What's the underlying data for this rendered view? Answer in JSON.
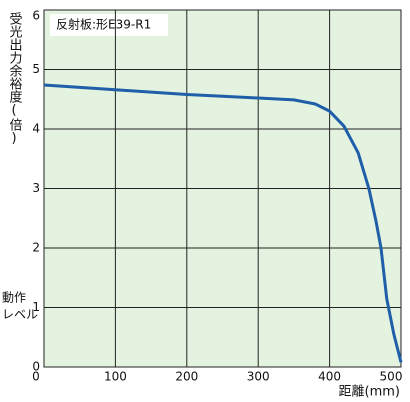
{
  "chart_data": {
    "type": "line",
    "ylabel": "受光出力余裕度(倍)",
    "xlabel": "距離(mm)",
    "annotation": "反射板:形E39-R1",
    "level_label": [
      "動作",
      "レベル"
    ],
    "x": [
      0,
      50,
      100,
      150,
      200,
      250,
      300,
      350,
      380,
      400,
      420,
      440,
      455,
      465,
      472,
      480,
      490,
      500
    ],
    "values": [
      4.74,
      4.7,
      4.66,
      4.62,
      4.58,
      4.55,
      4.52,
      4.49,
      4.42,
      4.3,
      4.05,
      3.6,
      3.0,
      2.45,
      2.0,
      1.15,
      0.55,
      0.08
    ],
    "color": "#1f5fa8",
    "xlim": [
      0,
      500
    ],
    "xticks": [
      0,
      100,
      200,
      300,
      400,
      500
    ],
    "ylim": [
      0,
      6
    ],
    "yticks": [
      0,
      1,
      2,
      3,
      4,
      5,
      6
    ],
    "grid": true
  }
}
